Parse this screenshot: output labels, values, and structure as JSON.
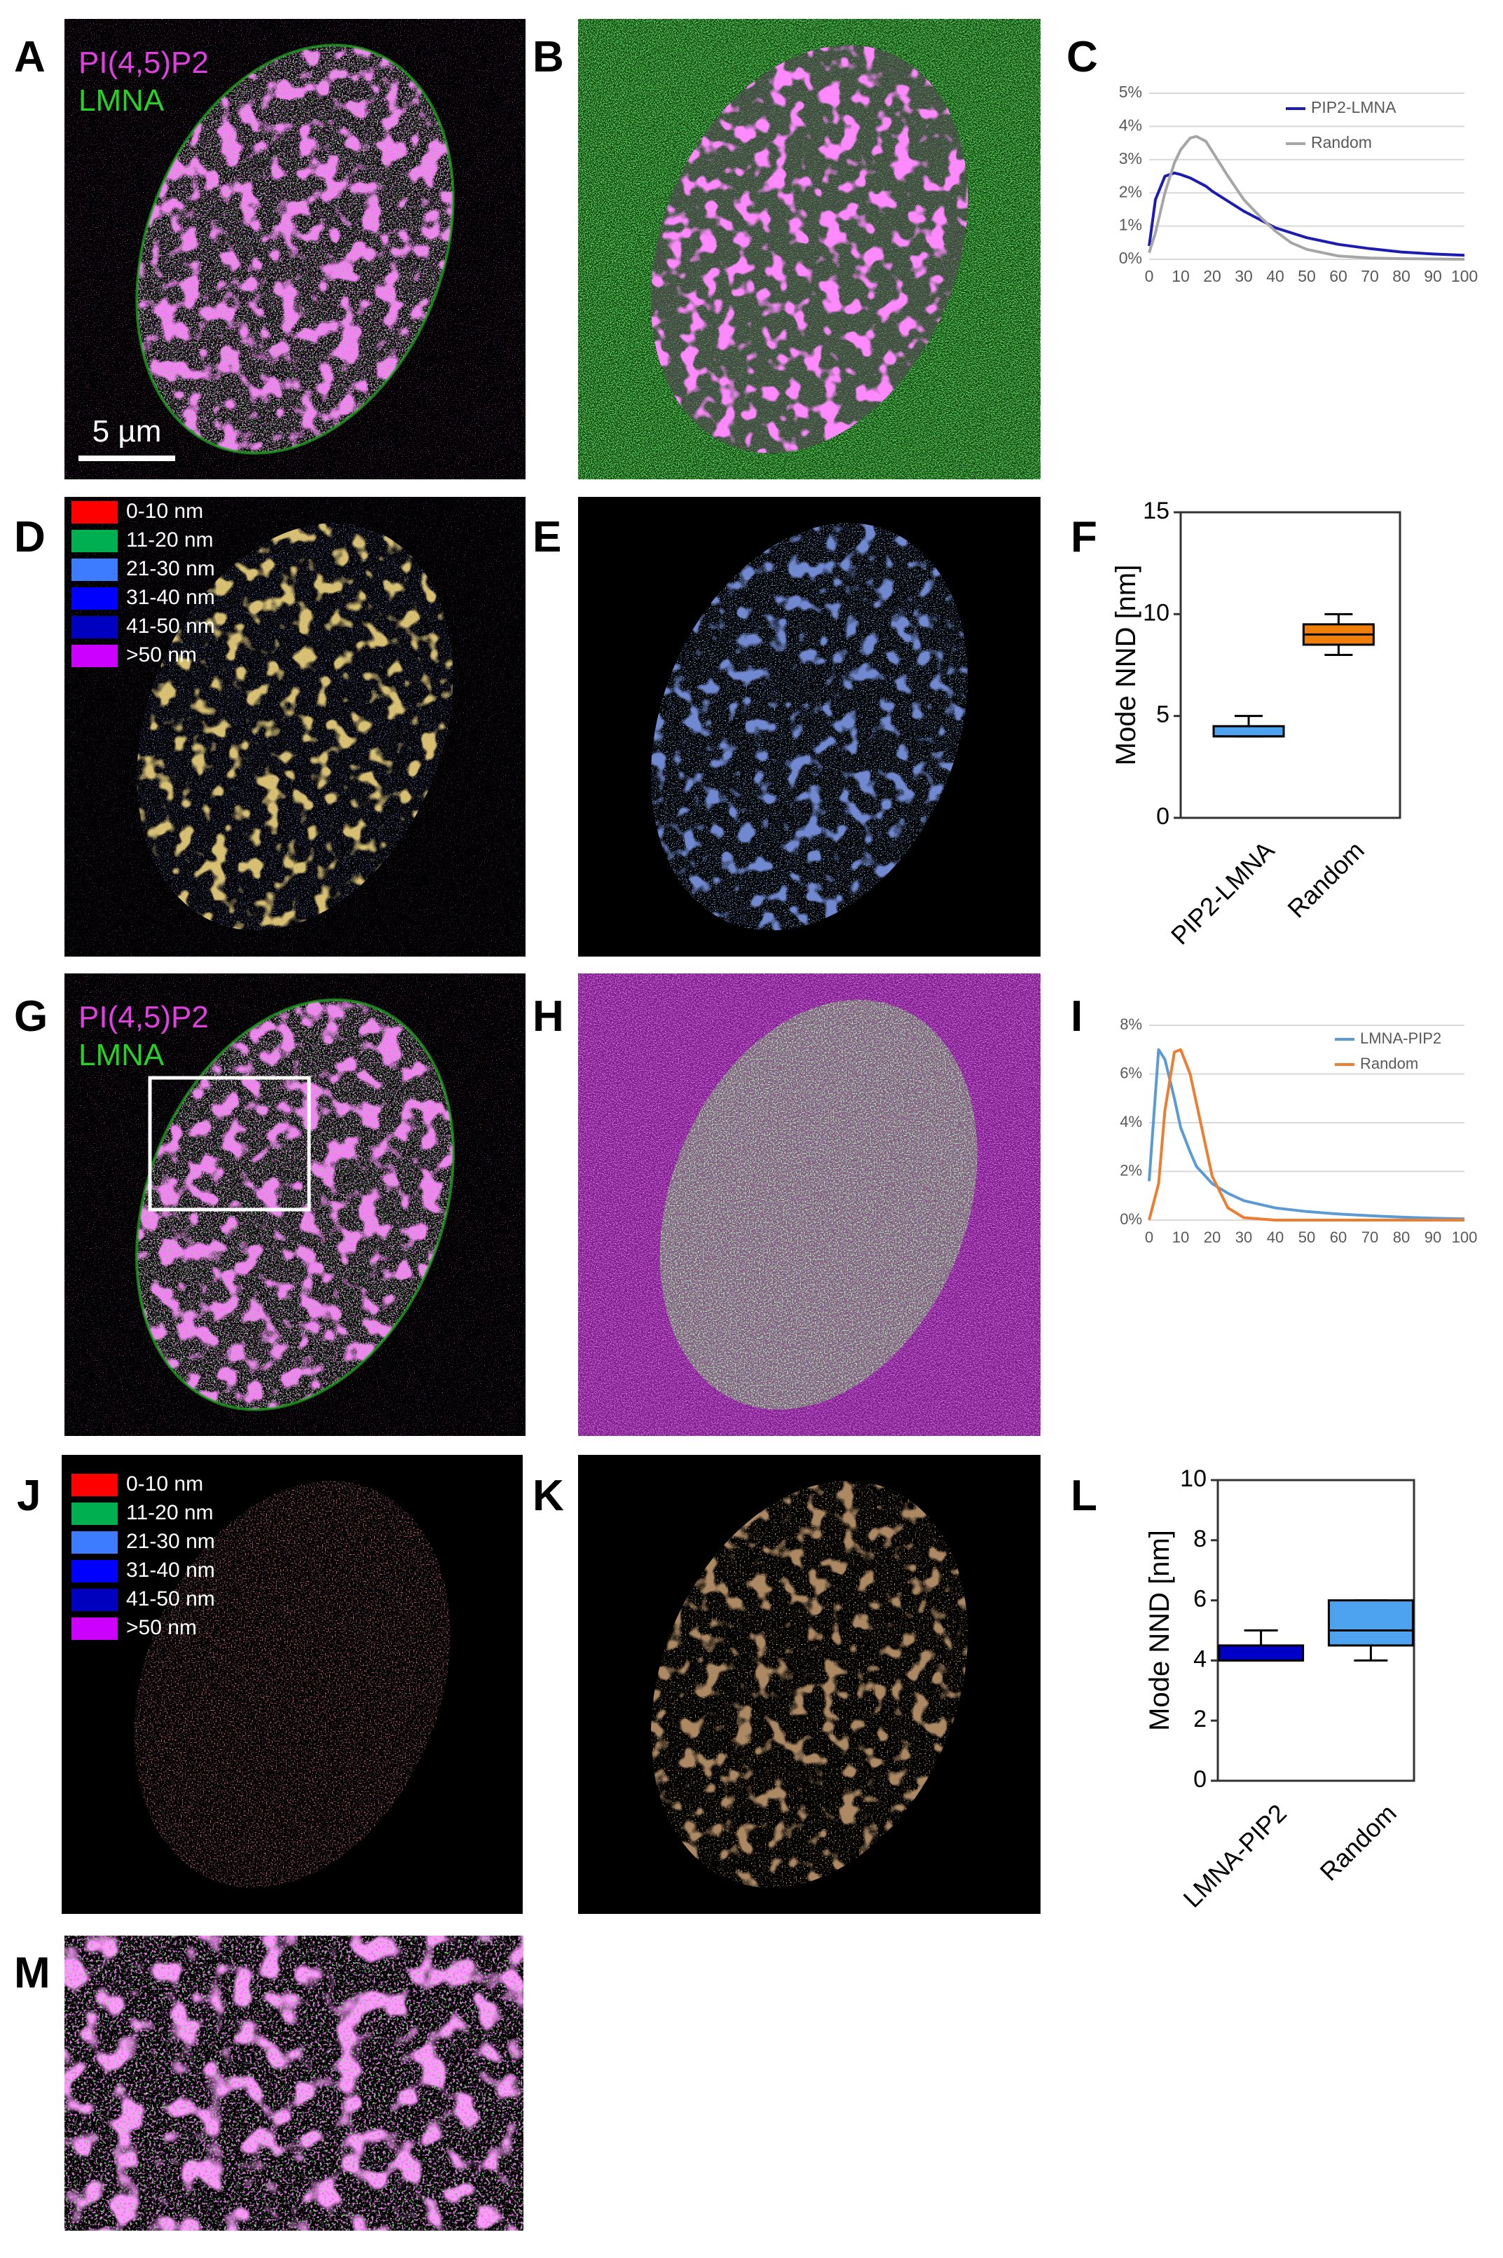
{
  "panels": {
    "letters": [
      "A",
      "B",
      "C",
      "D",
      "E",
      "F",
      "G",
      "H",
      "I",
      "J",
      "K",
      "L",
      "M"
    ]
  },
  "panel_a": {
    "labels": [
      "PI(4,5)P2",
      "LMNA"
    ],
    "scale_bar": "5 µm"
  },
  "panel_g": {
    "labels": [
      "PI(4,5)P2",
      "LMNA"
    ]
  },
  "legend_d": {
    "entries": [
      {
        "label": "0-10 nm",
        "color": "#ff0000"
      },
      {
        "label": "11-20 nm",
        "color": "#00b050"
      },
      {
        "label": "21-30 nm",
        "color": "#3d7bff"
      },
      {
        "label": "31-40 nm",
        "color": "#0000ff"
      },
      {
        "label": "41-50 nm",
        "color": "#0000c0"
      },
      {
        "label": ">50 nm",
        "color": "#cc00ff"
      }
    ]
  },
  "legend_j": {
    "entries": [
      {
        "label": "0-10 nm",
        "color": "#ff0000"
      },
      {
        "label": "11-20 nm",
        "color": "#00b050"
      },
      {
        "label": "21-30 nm",
        "color": "#3d7bff"
      },
      {
        "label": "31-40 nm",
        "color": "#0000ff"
      },
      {
        "label": "41-50 nm",
        "color": "#0000c0"
      },
      {
        "label": ">50 nm",
        "color": "#cc00ff"
      }
    ]
  },
  "chart_data": [
    {
      "type": "line",
      "x": [
        0,
        2,
        5,
        8,
        10,
        13,
        15,
        18,
        20,
        25,
        30,
        35,
        40,
        45,
        50,
        60,
        70,
        80,
        90,
        100
      ],
      "xlim": [
        0,
        100
      ],
      "xticks": [
        0,
        10,
        20,
        30,
        40,
        50,
        60,
        70,
        80,
        90,
        100
      ],
      "ylim": [
        0,
        5
      ],
      "yticks": [
        {
          "value": 0,
          "label": "0%"
        },
        {
          "value": 1,
          "label": "1%"
        },
        {
          "value": 2,
          "label": "2%"
        },
        {
          "value": 3,
          "label": "3%"
        },
        {
          "value": 4,
          "label": "4%"
        },
        {
          "value": 5,
          "label": "5%"
        }
      ],
      "grid": true,
      "legend": "upper right",
      "series": [
        {
          "name": "PIP2-LMNA",
          "color": "#1c1cb4",
          "values": [
            0.4,
            1.8,
            2.5,
            2.6,
            2.55,
            2.45,
            2.35,
            2.2,
            2.05,
            1.75,
            1.45,
            1.2,
            0.95,
            0.8,
            0.65,
            0.45,
            0.32,
            0.22,
            0.16,
            0.12
          ]
        },
        {
          "name": "Random",
          "color": "#a6a6a6",
          "values": [
            0.2,
            0.8,
            2.0,
            2.9,
            3.3,
            3.65,
            3.7,
            3.55,
            3.25,
            2.5,
            1.8,
            1.3,
            0.85,
            0.5,
            0.3,
            0.1,
            0.04,
            0.02,
            0.01,
            0
          ]
        }
      ]
    },
    {
      "type": "box",
      "ylabel": "Mode NND [nm]",
      "categories": [
        "PIP2-LMNA",
        "Random"
      ],
      "ylim": [
        0,
        15
      ],
      "yticks": [
        0,
        5,
        10,
        15
      ],
      "boxes": [
        {
          "min": 4,
          "q1": 4,
          "median": 4,
          "q3": 4.5,
          "max": 5,
          "color": "#4da3f0"
        },
        {
          "min": 8,
          "q1": 8.5,
          "median": 9,
          "q3": 9.5,
          "max": 10,
          "color": "#f07f0a"
        }
      ]
    },
    {
      "type": "line",
      "x": [
        0,
        3,
        5,
        8,
        10,
        13,
        15,
        20,
        25,
        30,
        40,
        50,
        60,
        70,
        80,
        90,
        100
      ],
      "xlim": [
        0,
        100
      ],
      "xticks": [
        0,
        10,
        20,
        30,
        40,
        50,
        60,
        70,
        80,
        90,
        100
      ],
      "ylim": [
        0,
        8
      ],
      "yticks": [
        {
          "value": 0,
          "label": "0%"
        },
        {
          "value": 2,
          "label": "2%"
        },
        {
          "value": 4,
          "label": "4%"
        },
        {
          "value": 6,
          "label": "6%"
        },
        {
          "value": 8,
          "label": "8%"
        }
      ],
      "grid": true,
      "legend": "upper right",
      "series": [
        {
          "name": "LMNA-PIP2",
          "color": "#5b9bd5",
          "values": [
            1.6,
            7.0,
            6.6,
            5.0,
            3.8,
            2.8,
            2.2,
            1.5,
            1.1,
            0.8,
            0.5,
            0.35,
            0.25,
            0.18,
            0.12,
            0.08,
            0.05
          ]
        },
        {
          "name": "Random",
          "color": "#ed7d31",
          "values": [
            0,
            1.5,
            4.5,
            6.9,
            7.0,
            6.0,
            4.8,
            1.8,
            0.5,
            0.1,
            0,
            0,
            0,
            0,
            0,
            0,
            0
          ]
        }
      ]
    },
    {
      "type": "box",
      "ylabel": "Mode NND [nm]",
      "categories": [
        "LMNA-PIP2",
        "Random"
      ],
      "ylim": [
        0,
        10
      ],
      "yticks": [
        0,
        2,
        4,
        6,
        8,
        10
      ],
      "boxes": [
        {
          "min": 4,
          "q1": 4,
          "median": 4,
          "q3": 4.5,
          "max": 5,
          "color": "#0000c8"
        },
        {
          "min": 4,
          "q1": 4.5,
          "median": 5,
          "q3": 6,
          "max": 6,
          "color": "#4da3f0"
        }
      ]
    }
  ]
}
